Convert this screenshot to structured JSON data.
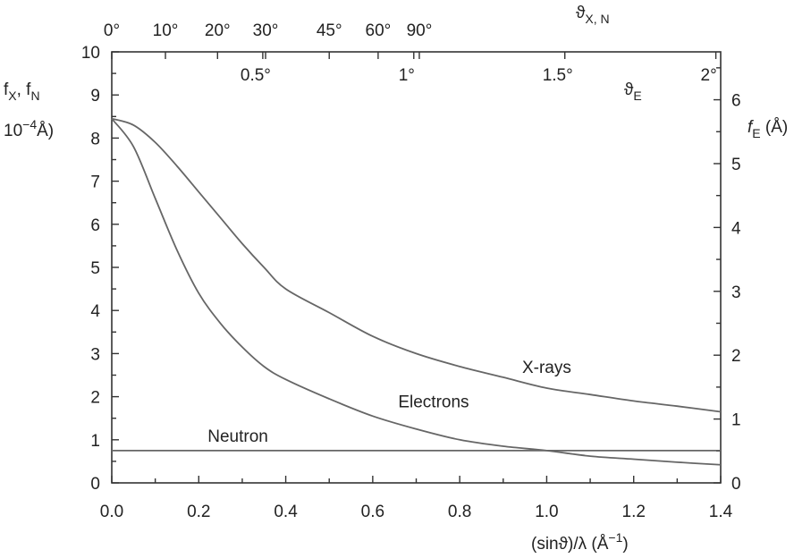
{
  "chart_data": {
    "type": "line",
    "x_axis": {
      "label_main": "(sinϑ)/λ (Å",
      "label_sup": "−1",
      "label_end": ")",
      "range": [
        0,
        1.4
      ],
      "ticks": [
        0,
        0.2,
        0.4,
        0.6,
        0.8,
        1.0,
        1.2,
        1.4
      ],
      "tick_labels": [
        "0.0",
        "0.2",
        "0.4",
        "0.6",
        "0.8",
        "1.0",
        "1.2",
        "1.4"
      ]
    },
    "y_axis_left": {
      "label_line1": "f",
      "label_sub1": "X",
      "label_sep": ", f",
      "label_sub2": "N",
      "label_line2_main": "10",
      "label_line2_sup": "−4",
      "label_line2_end": "Å)",
      "range": [
        0,
        10
      ],
      "ticks": [
        0,
        1,
        2,
        3,
        4,
        5,
        6,
        7,
        8,
        9,
        10
      ],
      "tick_labels": [
        "0",
        "1",
        "2",
        "3",
        "4",
        "5",
        "6",
        "7",
        "8",
        "9",
        "10"
      ]
    },
    "y_axis_right": {
      "label_main": "f",
      "label_sub": "E",
      "label_end": " (Å)",
      "range": [
        0,
        6.75
      ],
      "ticks": [
        0,
        1,
        2,
        3,
        4,
        5,
        6
      ],
      "tick_labels": [
        "0",
        "1",
        "2",
        "3",
        "4",
        "5",
        "6"
      ]
    },
    "x_axis_top": {
      "label_main": "ϑ",
      "label_sub": "X, N",
      "ticks_x": [
        0,
        0.1234,
        0.2432,
        0.3536,
        0.5,
        0.6124,
        0.7071
      ],
      "tick_labels": [
        "0°",
        "10°",
        "20°",
        "30°",
        "45°",
        "60°",
        "90°"
      ]
    },
    "x_axis_inner": {
      "label_main": "ϑ",
      "label_sub": "E",
      "ticks_x": [
        0.3472,
        0.6944,
        1.0417,
        1.3889
      ],
      "tick_labels": [
        "0.5°",
        "1°",
        "1.5°",
        "2°"
      ]
    },
    "series": [
      {
        "name": "X-rays",
        "axis": "left",
        "x": [
          0,
          0.05,
          0.1,
          0.15,
          0.2,
          0.25,
          0.3,
          0.35,
          0.4,
          0.5,
          0.6,
          0.7,
          0.8,
          0.9,
          1.0,
          1.1,
          1.2,
          1.3,
          1.4
        ],
        "y": [
          8.45,
          8.3,
          7.9,
          7.35,
          6.75,
          6.15,
          5.55,
          5.0,
          4.5,
          3.95,
          3.4,
          3.0,
          2.7,
          2.45,
          2.2,
          2.05,
          1.9,
          1.78,
          1.65
        ]
      },
      {
        "name": "Electrons",
        "axis": "left",
        "x": [
          0,
          0.05,
          0.1,
          0.15,
          0.2,
          0.25,
          0.3,
          0.35,
          0.4,
          0.5,
          0.6,
          0.7,
          0.8,
          0.9,
          1.0,
          1.1,
          1.2,
          1.3,
          1.4
        ],
        "y": [
          8.45,
          7.8,
          6.6,
          5.4,
          4.4,
          3.7,
          3.15,
          2.7,
          2.4,
          1.95,
          1.55,
          1.25,
          1.0,
          0.85,
          0.75,
          0.62,
          0.55,
          0.48,
          0.42
        ]
      },
      {
        "name": "Neutron",
        "axis": "left",
        "x": [
          0,
          1.4
        ],
        "y": [
          0.75,
          0.75
        ]
      }
    ],
    "annotations": [
      {
        "text": "X-rays",
        "x": 1.0,
        "y": 2.55
      },
      {
        "text": "Electrons",
        "x": 0.74,
        "y": 1.75
      },
      {
        "text": "Neutron",
        "x": 0.29,
        "y": 0.95
      }
    ]
  }
}
